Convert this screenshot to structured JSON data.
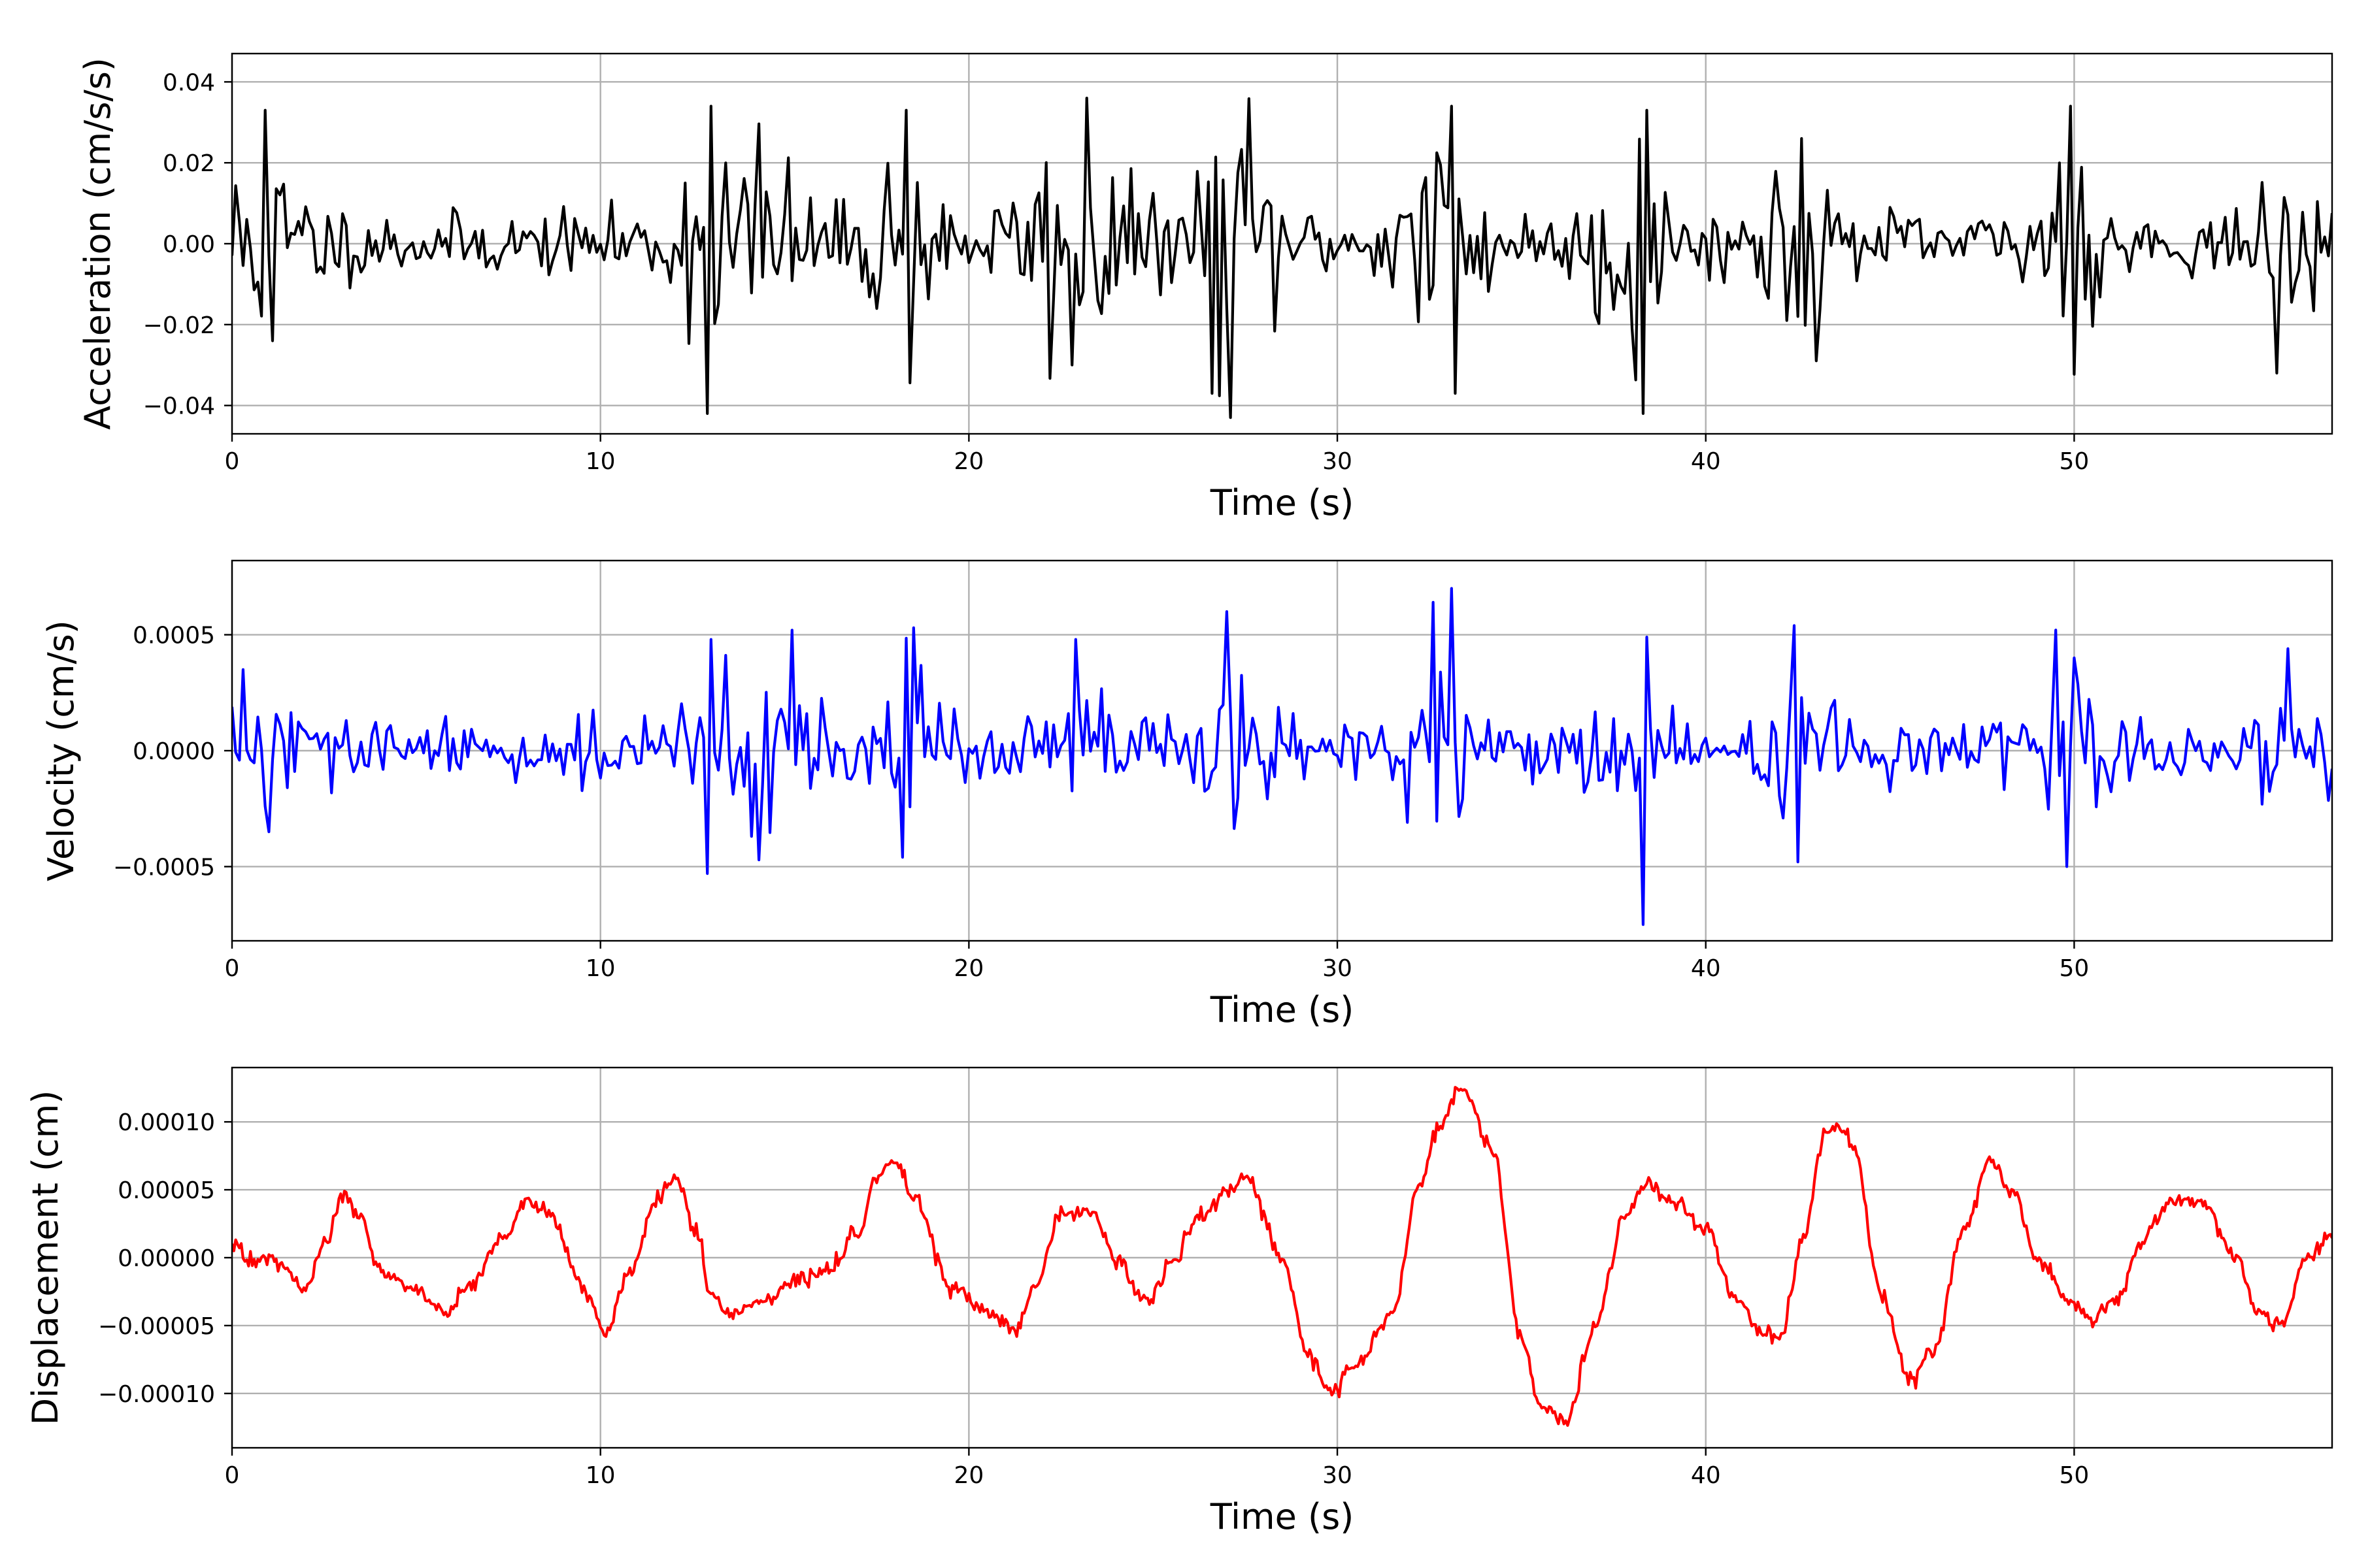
{
  "chart_data": [
    {
      "type": "line",
      "xlabel": "Time (s)",
      "ylabel": "Acceleration (cm/s/s)",
      "xlim": [
        0,
        57
      ],
      "ylim": [
        -0.047,
        0.047
      ],
      "xticks": [
        0,
        10,
        20,
        30,
        40,
        50
      ],
      "xtick_labels": [
        "0",
        "10",
        "20",
        "30",
        "40",
        "50"
      ],
      "yticks": [
        -0.04,
        -0.02,
        0.0,
        0.02,
        0.04
      ],
      "ytick_labels": [
        "−0.04",
        "−0.02",
        "0.00",
        "0.02",
        "0.04"
      ],
      "grid": true,
      "color": "#000000",
      "sample_dt": 0.1,
      "noise_seed": 11,
      "base_amplitude": 0.007,
      "bursts": [
        {
          "t": 0.8,
          "w": 1.4,
          "a": 0.017
        },
        {
          "t": 13.8,
          "w": 1.6,
          "a": 0.024
        },
        {
          "t": 18.2,
          "w": 0.9,
          "a": 0.022
        },
        {
          "t": 22.8,
          "w": 1.4,
          "a": 0.024
        },
        {
          "t": 27.2,
          "w": 1.2,
          "a": 0.027
        },
        {
          "t": 32.8,
          "w": 1.0,
          "a": 0.025
        },
        {
          "t": 37.8,
          "w": 1.0,
          "a": 0.024
        },
        {
          "t": 42.4,
          "w": 0.8,
          "a": 0.022
        },
        {
          "t": 49.8,
          "w": 0.8,
          "a": 0.024
        },
        {
          "t": 55.8,
          "w": 0.7,
          "a": 0.015
        }
      ],
      "peaks": [
        {
          "t": 0.9,
          "y": 0.033
        },
        {
          "t": 1.1,
          "y": -0.024
        },
        {
          "t": 12.9,
          "y": -0.042
        },
        {
          "t": 13.0,
          "y": 0.034
        },
        {
          "t": 18.3,
          "y": 0.033
        },
        {
          "t": 22.8,
          "y": -0.03
        },
        {
          "t": 23.2,
          "y": 0.036
        },
        {
          "t": 26.6,
          "y": -0.037
        },
        {
          "t": 27.1,
          "y": -0.043
        },
        {
          "t": 33.1,
          "y": 0.034
        },
        {
          "t": 33.2,
          "y": -0.037
        },
        {
          "t": 38.3,
          "y": -0.042
        },
        {
          "t": 38.4,
          "y": 0.033
        },
        {
          "t": 42.6,
          "y": 0.026
        },
        {
          "t": 49.9,
          "y": 0.034
        },
        {
          "t": 55.5,
          "y": -0.032
        }
      ]
    },
    {
      "type": "line",
      "xlabel": "Time (s)",
      "ylabel": "Velocity (cm/s)",
      "xlim": [
        0,
        57
      ],
      "ylim": [
        -0.00082,
        0.00082
      ],
      "xticks": [
        0,
        10,
        20,
        30,
        40,
        50
      ],
      "xtick_labels": [
        "0",
        "10",
        "20",
        "30",
        "40",
        "50"
      ],
      "yticks": [
        -0.0005,
        0.0,
        0.0005
      ],
      "ytick_labels": [
        "−0.0005",
        "0.0000",
        "0.0005"
      ],
      "grid": true,
      "color": "#0000ff",
      "sample_dt": 0.1,
      "noise_seed": 29,
      "base_amplitude": 0.00012,
      "bursts": [
        {
          "t": 0.6,
          "w": 1.2,
          "a": 0.00016
        },
        {
          "t": 14.0,
          "w": 1.6,
          "a": 0.00022
        },
        {
          "t": 18.4,
          "w": 0.9,
          "a": 0.00022
        },
        {
          "t": 23.0,
          "w": 1.2,
          "a": 0.00018
        },
        {
          "t": 27.0,
          "w": 1.2,
          "a": 0.00024
        },
        {
          "t": 32.6,
          "w": 1.0,
          "a": 0.00026
        },
        {
          "t": 38.0,
          "w": 1.0,
          "a": 0.00018
        },
        {
          "t": 42.6,
          "w": 0.8,
          "a": 0.00024
        },
        {
          "t": 49.8,
          "w": 0.8,
          "a": 0.0002
        },
        {
          "t": 55.8,
          "w": 0.7,
          "a": 0.00012
        }
      ],
      "peaks": [
        {
          "t": 0.3,
          "y": 0.00035
        },
        {
          "t": 1.0,
          "y": -0.00035
        },
        {
          "t": 12.9,
          "y": -0.00053
        },
        {
          "t": 13.0,
          "y": 0.00048
        },
        {
          "t": 15.2,
          "y": 0.00052
        },
        {
          "t": 18.2,
          "y": -0.00046
        },
        {
          "t": 18.5,
          "y": 0.00053
        },
        {
          "t": 22.9,
          "y": 0.00048
        },
        {
          "t": 27.0,
          "y": 0.0006
        },
        {
          "t": 32.6,
          "y": 0.00064
        },
        {
          "t": 33.1,
          "y": 0.0007
        },
        {
          "t": 38.3,
          "y": -0.00075
        },
        {
          "t": 38.4,
          "y": 0.00049
        },
        {
          "t": 42.5,
          "y": -0.00048
        },
        {
          "t": 49.8,
          "y": -0.0005
        },
        {
          "t": 50.0,
          "y": 0.0004
        },
        {
          "t": 55.8,
          "y": 0.00044
        }
      ]
    },
    {
      "type": "line",
      "xlabel": "Time (s)",
      "ylabel": "Displacement (cm)",
      "xlim": [
        0,
        57
      ],
      "ylim": [
        -0.00014,
        0.00014
      ],
      "xticks": [
        0,
        10,
        20,
        30,
        40,
        50
      ],
      "xtick_labels": [
        "0",
        "10",
        "20",
        "30",
        "40",
        "50"
      ],
      "yticks": [
        -0.0001,
        -5e-05,
        0.0,
        5e-05,
        0.0001
      ],
      "ytick_labels": [
        "−0.00010",
        "−0.00005",
        "0.00000",
        "0.00005",
        "0.00010"
      ],
      "grid": true,
      "color": "#ff0000",
      "sample_dt": 0.05,
      "noise_seed": 47,
      "noise_amplitude": 6e-06,
      "x": [
        0,
        0.5,
        1.0,
        1.5,
        2.0,
        2.5,
        3.0,
        3.5,
        4.0,
        5.0,
        5.8,
        6.5,
        7.2,
        8.0,
        8.6,
        9.5,
        10.1,
        10.8,
        11.5,
        12.0,
        12.6,
        13.0,
        13.5,
        14.5,
        15.5,
        16.2,
        17.0,
        17.5,
        18.0,
        18.5,
        19.5,
        20.5,
        21.3,
        21.8,
        22.5,
        23.3,
        24.0,
        24.8,
        25.5,
        26.2,
        27.0,
        27.5,
        28.5,
        29.2,
        29.8,
        30.5,
        31.5,
        32.2,
        32.8,
        33.4,
        34.2,
        35.0,
        35.5,
        36.2,
        37.0,
        37.8,
        38.4,
        39.2,
        40.0,
        40.8,
        41.5,
        42.0,
        42.7,
        43.2,
        43.6,
        44.0,
        44.8,
        45.5,
        46.2,
        47.0,
        47.7,
        48.3,
        49.0,
        49.8,
        50.5,
        51.2,
        51.8,
        52.6,
        53.5,
        54.4,
        55.0,
        55.6,
        56.3,
        57.0
      ],
      "y": [
        1.5e-05,
        -5e-06,
        0.0,
        -1e-05,
        -2.5e-05,
        1e-05,
        4.5e-05,
        3e-05,
        -1e-05,
        -2.5e-05,
        -4e-05,
        -2e-05,
        1e-05,
        4e-05,
        3.5e-05,
        -2e-05,
        -5.5e-05,
        -1e-05,
        4e-05,
        6e-05,
        2e-05,
        -3e-05,
        -4e-05,
        -3e-05,
        -1.5e-05,
        -1e-05,
        2e-05,
        6e-05,
        7e-05,
        4.5e-05,
        -2e-05,
        -4e-05,
        -5.5e-05,
        -2e-05,
        3e-05,
        3.5e-05,
        0.0,
        -3.5e-05,
        -5e-06,
        3e-05,
        4.5e-05,
        6e-05,
        0.0,
        -7e-05,
        -0.0001,
        -8e-05,
        -4e-05,
        5e-05,
        0.0001,
        0.000125,
        8e-05,
        -6e-05,
        -0.00011,
        -0.00012,
        -5e-05,
        3e-05,
        5.5e-05,
        4e-05,
        2e-05,
        -3e-05,
        -5.5e-05,
        -6e-05,
        2e-05,
        9e-05,
        0.0001,
        8e-05,
        -3e-05,
        -9e-05,
        -7e-05,
        2e-05,
        7e-05,
        5e-05,
        0.0,
        -3e-05,
        -4.5e-05,
        -3e-05,
        1e-05,
        4e-05,
        4e-05,
        0.0,
        -4e-05,
        -5e-05,
        0.0,
        1.5e-05
      ]
    }
  ]
}
